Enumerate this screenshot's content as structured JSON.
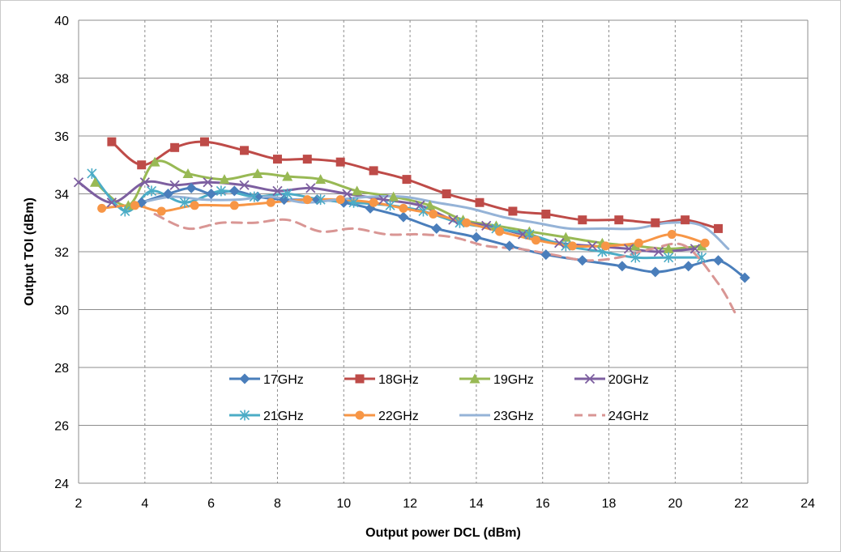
{
  "chart_data": {
    "type": "line",
    "title": "",
    "xlabel": "Output power DCL (dBm)",
    "ylabel": "Output TOI (dBm)",
    "xlim": [
      2,
      24
    ],
    "ylim": [
      24,
      40
    ],
    "x_ticks": [
      "2",
      "4",
      "6",
      "8",
      "10",
      "12",
      "14",
      "16",
      "18",
      "20",
      "22",
      "24"
    ],
    "y_ticks": [
      "24",
      "26",
      "28",
      "30",
      "32",
      "34",
      "36",
      "38",
      "40"
    ],
    "grid": {
      "x": "dashed",
      "y": "solid"
    },
    "legend_position": "inside-bottom",
    "series": [
      {
        "name": "17GHz",
        "color": "#4a7ebb",
        "marker": "diamond",
        "dash": false,
        "points": [
          [
            3.9,
            33.7
          ],
          [
            4.7,
            34.0
          ],
          [
            5.4,
            34.2
          ],
          [
            6.0,
            34.0
          ],
          [
            6.7,
            34.1
          ],
          [
            7.4,
            33.9
          ],
          [
            8.2,
            33.8
          ],
          [
            9.2,
            33.8
          ],
          [
            10.0,
            33.7
          ],
          [
            10.8,
            33.5
          ],
          [
            11.8,
            33.2
          ],
          [
            12.8,
            32.8
          ],
          [
            14.0,
            32.5
          ],
          [
            15.0,
            32.2
          ],
          [
            16.1,
            31.9
          ],
          [
            17.2,
            31.7
          ],
          [
            18.4,
            31.5
          ],
          [
            19.4,
            31.3
          ],
          [
            20.4,
            31.5
          ],
          [
            21.3,
            31.7
          ],
          [
            22.1,
            31.1
          ]
        ]
      },
      {
        "name": "18GHz",
        "color": "#be4b48",
        "marker": "square",
        "dash": false,
        "points": [
          [
            3.0,
            35.8
          ],
          [
            3.9,
            35.0
          ],
          [
            4.9,
            35.6
          ],
          [
            5.8,
            35.8
          ],
          [
            7.0,
            35.5
          ],
          [
            8.0,
            35.2
          ],
          [
            8.9,
            35.2
          ],
          [
            9.9,
            35.1
          ],
          [
            10.9,
            34.8
          ],
          [
            11.9,
            34.5
          ],
          [
            13.1,
            34.0
          ],
          [
            14.1,
            33.7
          ],
          [
            15.1,
            33.4
          ],
          [
            16.1,
            33.3
          ],
          [
            17.2,
            33.1
          ],
          [
            18.3,
            33.1
          ],
          [
            19.4,
            33.0
          ],
          [
            20.3,
            33.1
          ],
          [
            21.3,
            32.8
          ]
        ]
      },
      {
        "name": "19GHz",
        "color": "#98b954",
        "marker": "triangle",
        "dash": false,
        "points": [
          [
            2.5,
            34.4
          ],
          [
            3.5,
            33.6
          ],
          [
            4.3,
            35.1
          ],
          [
            5.3,
            34.7
          ],
          [
            6.4,
            34.5
          ],
          [
            7.4,
            34.7
          ],
          [
            8.3,
            34.6
          ],
          [
            9.3,
            34.5
          ],
          [
            10.4,
            34.1
          ],
          [
            11.5,
            33.9
          ],
          [
            12.6,
            33.6
          ],
          [
            13.6,
            33.1
          ],
          [
            14.6,
            32.9
          ],
          [
            15.6,
            32.7
          ],
          [
            16.7,
            32.5
          ],
          [
            17.8,
            32.3
          ],
          [
            18.8,
            32.2
          ],
          [
            19.8,
            32.1
          ],
          [
            20.8,
            32.2
          ]
        ]
      },
      {
        "name": "20GHz",
        "color": "#7d5fa0",
        "marker": "x",
        "dash": false,
        "points": [
          [
            2.0,
            34.4
          ],
          [
            3.0,
            33.7
          ],
          [
            4.0,
            34.4
          ],
          [
            4.9,
            34.3
          ],
          [
            5.9,
            34.4
          ],
          [
            7.0,
            34.3
          ],
          [
            8.0,
            34.1
          ],
          [
            9.0,
            34.2
          ],
          [
            10.1,
            34.0
          ],
          [
            11.2,
            33.8
          ],
          [
            12.3,
            33.6
          ],
          [
            13.3,
            33.1
          ],
          [
            14.3,
            32.9
          ],
          [
            15.4,
            32.6
          ],
          [
            16.5,
            32.3
          ],
          [
            17.5,
            32.2
          ],
          [
            18.6,
            32.1
          ],
          [
            19.5,
            32.0
          ],
          [
            20.6,
            32.1
          ]
        ]
      },
      {
        "name": "21GHz",
        "color": "#4bacc6",
        "marker": "star",
        "dash": false,
        "points": [
          [
            2.4,
            34.7
          ],
          [
            3.4,
            33.4
          ],
          [
            4.2,
            34.1
          ],
          [
            5.2,
            33.7
          ],
          [
            6.3,
            34.1
          ],
          [
            7.3,
            33.9
          ],
          [
            8.3,
            34.0
          ],
          [
            9.3,
            33.8
          ],
          [
            10.3,
            33.7
          ],
          [
            11.4,
            33.6
          ],
          [
            12.4,
            33.4
          ],
          [
            13.5,
            33.0
          ],
          [
            14.6,
            32.8
          ],
          [
            15.6,
            32.6
          ],
          [
            16.7,
            32.2
          ],
          [
            17.8,
            32.0
          ],
          [
            18.8,
            31.8
          ],
          [
            19.8,
            31.8
          ],
          [
            20.8,
            31.8
          ]
        ]
      },
      {
        "name": "22GHz",
        "color": "#f79646",
        "marker": "circle",
        "dash": false,
        "points": [
          [
            2.7,
            33.5
          ],
          [
            3.7,
            33.6
          ],
          [
            4.5,
            33.4
          ],
          [
            5.5,
            33.6
          ],
          [
            6.7,
            33.6
          ],
          [
            7.8,
            33.7
          ],
          [
            8.9,
            33.8
          ],
          [
            9.9,
            33.8
          ],
          [
            10.9,
            33.7
          ],
          [
            11.8,
            33.5
          ],
          [
            12.7,
            33.3
          ],
          [
            13.7,
            33.0
          ],
          [
            14.7,
            32.7
          ],
          [
            15.8,
            32.4
          ],
          [
            16.9,
            32.2
          ],
          [
            17.9,
            32.2
          ],
          [
            18.9,
            32.3
          ],
          [
            19.9,
            32.6
          ],
          [
            20.9,
            32.3
          ]
        ]
      },
      {
        "name": "23GHz",
        "color": "#95b3d7",
        "marker": "none",
        "dash": false,
        "points": [
          [
            3.9,
            33.7
          ],
          [
            4.8,
            33.9
          ],
          [
            5.8,
            33.8
          ],
          [
            6.8,
            33.8
          ],
          [
            7.8,
            33.9
          ],
          [
            8.8,
            33.7
          ],
          [
            9.8,
            33.8
          ],
          [
            10.8,
            33.9
          ],
          [
            11.8,
            33.9
          ],
          [
            12.8,
            33.7
          ],
          [
            13.8,
            33.5
          ],
          [
            14.8,
            33.2
          ],
          [
            15.8,
            33.0
          ],
          [
            16.8,
            32.8
          ],
          [
            17.8,
            32.8
          ],
          [
            18.8,
            32.8
          ],
          [
            19.8,
            33.0
          ],
          [
            20.8,
            32.9
          ],
          [
            21.6,
            32.1
          ]
        ]
      },
      {
        "name": "24GHz",
        "color": "#d99694",
        "marker": "none",
        "dash": true,
        "points": [
          [
            4.3,
            33.3
          ],
          [
            5.3,
            32.8
          ],
          [
            6.3,
            33.0
          ],
          [
            7.3,
            33.0
          ],
          [
            8.3,
            33.1
          ],
          [
            9.3,
            32.7
          ],
          [
            10.3,
            32.8
          ],
          [
            11.3,
            32.6
          ],
          [
            12.3,
            32.6
          ],
          [
            13.3,
            32.5
          ],
          [
            14.3,
            32.2
          ],
          [
            15.3,
            32.1
          ],
          [
            16.3,
            31.9
          ],
          [
            17.3,
            31.7
          ],
          [
            18.3,
            31.8
          ],
          [
            19.3,
            32.1
          ],
          [
            20.3,
            32.2
          ],
          [
            21.3,
            30.9
          ],
          [
            21.8,
            29.9
          ]
        ]
      }
    ]
  }
}
